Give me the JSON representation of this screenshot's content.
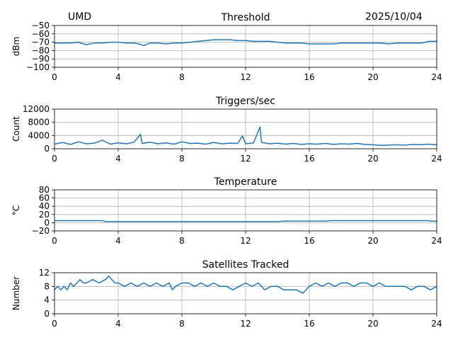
{
  "header": {
    "site": "UMD",
    "date": "2025/10/04"
  },
  "colors": {
    "series": "#1f77b4"
  },
  "chart_data": [
    {
      "type": "line",
      "title": "Threshold",
      "ylabel": "dBm",
      "xlim": [
        0,
        24
      ],
      "ylim": [
        -100,
        -50
      ],
      "xticks": [
        0,
        4,
        8,
        12,
        16,
        20,
        24
      ],
      "yticks": [
        -100,
        -90,
        -80,
        -70,
        -60,
        -50
      ],
      "grid": true,
      "x": [
        0,
        0.5,
        1,
        1.5,
        2,
        2.5,
        3,
        3.5,
        4,
        4.5,
        5,
        5.3,
        5.6,
        6,
        6.5,
        7,
        7.5,
        8,
        8.5,
        9,
        9.5,
        10,
        10.5,
        11,
        11.5,
        12,
        12.5,
        13,
        13.5,
        14,
        14.5,
        15,
        15.5,
        16,
        16.5,
        17,
        17.5,
        18,
        18.5,
        19,
        19.5,
        20,
        20.5,
        21,
        21.5,
        22,
        22.5,
        23,
        23.3,
        23.5,
        24
      ],
      "y": [
        -71,
        -71,
        -71,
        -70,
        -73,
        -71,
        -71,
        -70,
        -70,
        -71,
        -71,
        -72,
        -74,
        -71,
        -71,
        -72,
        -71,
        -71,
        -70,
        -69,
        -68,
        -67,
        -67,
        -67,
        -68,
        -68,
        -69,
        -69,
        -69,
        -70,
        -71,
        -71,
        -71,
        -72,
        -72,
        -72,
        -72,
        -71,
        -71,
        -71,
        -71,
        -71,
        -71,
        -72,
        -71,
        -71,
        -71,
        -71,
        -70,
        -69,
        -69
      ]
    },
    {
      "type": "line",
      "title": "Triggers/sec",
      "ylabel": "Count",
      "xlim": [
        0,
        24
      ],
      "ylim": [
        0,
        12000
      ],
      "xticks": [
        0,
        4,
        8,
        12,
        16,
        20,
        24
      ],
      "yticks": [
        0,
        4000,
        8000,
        12000
      ],
      "grid": true,
      "x": [
        0,
        0.5,
        1,
        1.5,
        2,
        2.5,
        3,
        3.5,
        4,
        4.5,
        5,
        5.4,
        5.5,
        6,
        6.5,
        7,
        7.5,
        8,
        8.5,
        9,
        9.5,
        10,
        10.5,
        11,
        11.5,
        11.8,
        12,
        12.5,
        12.9,
        13,
        13.5,
        14,
        14.5,
        15,
        15.5,
        16,
        16.5,
        17,
        17.5,
        18,
        18.5,
        19,
        19.5,
        20,
        20.5,
        21,
        21.5,
        22,
        22.5,
        23,
        23.5,
        24
      ],
      "y": [
        1400,
        1900,
        1300,
        2100,
        1500,
        1700,
        2600,
        1400,
        1800,
        1500,
        2000,
        4400,
        1600,
        2000,
        1500,
        1800,
        1400,
        2100,
        1600,
        1700,
        1400,
        1900,
        1500,
        1700,
        1600,
        3900,
        1500,
        1800,
        6600,
        1900,
        1500,
        1700,
        1400,
        1600,
        1300,
        1500,
        1400,
        1600,
        1300,
        1500,
        1400,
        1600,
        1300,
        1200,
        1000,
        1100,
        1200,
        1100,
        1300,
        1200,
        1400,
        1200
      ]
    },
    {
      "type": "line",
      "title": "Temperature",
      "ylabel": "°C",
      "xlim": [
        0,
        24
      ],
      "ylim": [
        -20,
        80
      ],
      "xticks": [
        0,
        4,
        8,
        12,
        16,
        20,
        24
      ],
      "yticks": [
        -20,
        0,
        20,
        40,
        60,
        80
      ],
      "grid": true,
      "x": [
        0,
        1,
        2,
        3,
        3.2,
        4,
        6,
        8,
        10,
        12,
        14,
        14.5,
        15,
        16,
        17,
        17.4,
        18,
        20,
        22,
        23.5,
        23.6,
        24
      ],
      "y": [
        5,
        5,
        5,
        5,
        3,
        3,
        3,
        3,
        3,
        3,
        3,
        4,
        4,
        4,
        4,
        5,
        5,
        5,
        5,
        5,
        4,
        4
      ]
    },
    {
      "type": "line",
      "title": "Satellites Tracked",
      "ylabel": "Number",
      "xlim": [
        0,
        24
      ],
      "ylim": [
        0,
        12
      ],
      "xticks": [
        0,
        4,
        8,
        12,
        16,
        20,
        24
      ],
      "yticks": [
        0,
        4,
        8,
        12
      ],
      "grid": true,
      "x": [
        0,
        0.2,
        0.4,
        0.6,
        0.8,
        1.0,
        1.2,
        1.4,
        1.6,
        1.8,
        2.0,
        2.4,
        2.8,
        3.2,
        3.4,
        3.6,
        3.8,
        4.0,
        4.4,
        4.8,
        5.2,
        5.6,
        6.0,
        6.4,
        6.8,
        7.2,
        7.4,
        7.6,
        8.0,
        8.4,
        8.8,
        9.2,
        9.6,
        10.0,
        10.4,
        10.8,
        11.2,
        11.6,
        12.0,
        12.4,
        12.8,
        13.2,
        13.6,
        14.0,
        14.4,
        14.8,
        15.2,
        15.6,
        16.0,
        16.4,
        16.8,
        17.2,
        17.6,
        18.0,
        18.4,
        18.8,
        19.2,
        19.6,
        20.0,
        20.4,
        20.8,
        21.2,
        21.6,
        22.0,
        22.4,
        22.8,
        23.2,
        23.6,
        24.0
      ],
      "y": [
        7,
        8,
        7,
        8,
        7,
        9,
        8,
        9,
        10,
        9,
        9,
        10,
        9,
        10,
        11,
        10,
        9,
        9,
        8,
        9,
        8,
        9,
        8,
        9,
        8,
        9,
        7,
        8,
        9,
        9,
        8,
        9,
        8,
        9,
        8,
        8,
        7,
        8,
        9,
        8,
        9,
        7,
        8,
        8,
        7,
        7,
        7,
        6,
        8,
        9,
        8,
        9,
        8,
        9,
        9,
        8,
        9,
        9,
        8,
        9,
        8,
        8,
        8,
        8,
        7,
        8,
        8,
        7,
        8
      ]
    }
  ]
}
